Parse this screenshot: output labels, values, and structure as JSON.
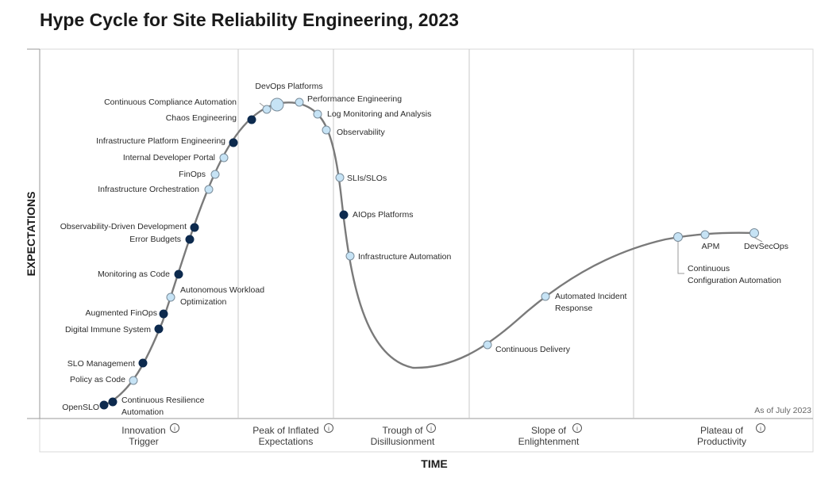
{
  "title": "Hype Cycle for Site Reliability Engineering, 2023",
  "axis": {
    "y_label": "EXPECTATIONS",
    "x_label": "TIME"
  },
  "as_of": "As of July 2023",
  "phases": [
    {
      "line1": "Innovation",
      "line2": "Trigger"
    },
    {
      "line1": "Peak of Inflated",
      "line2": "Expectations"
    },
    {
      "line1": "Trough of",
      "line2": "Disillusionment"
    },
    {
      "line1": "Slope of",
      "line2": "Enlightenment"
    },
    {
      "line1": "Plateau of",
      "line2": "Productivity"
    }
  ],
  "colors": {
    "dark_marker": "#0d2a4e",
    "light_marker": "#c6e3f5",
    "curve": "#7a7a7a",
    "grid": "#c8c8c8"
  },
  "technologies": [
    {
      "name": "OpenSLO",
      "marker": "dark"
    },
    {
      "name": "Continuous Resilience Automation",
      "marker": "dark"
    },
    {
      "name": "Policy as Code",
      "marker": "light"
    },
    {
      "name": "SLO Management",
      "marker": "dark"
    },
    {
      "name": "Digital Immune System",
      "marker": "dark"
    },
    {
      "name": "Augmented FinOps",
      "marker": "dark"
    },
    {
      "name": "Autonomous Workload Optimization",
      "marker": "light"
    },
    {
      "name": "Monitoring as Code",
      "marker": "dark"
    },
    {
      "name": "Error Budgets",
      "marker": "dark"
    },
    {
      "name": "Observability-Driven Development",
      "marker": "dark"
    },
    {
      "name": "Infrastructure Orchestration",
      "marker": "light"
    },
    {
      "name": "FinOps",
      "marker": "light"
    },
    {
      "name": "Internal Developer Portal",
      "marker": "light"
    },
    {
      "name": "Infrastructure Platform Engineering",
      "marker": "dark"
    },
    {
      "name": "Chaos Engineering",
      "marker": "dark"
    },
    {
      "name": "Continuous Compliance Automation",
      "marker": "light"
    },
    {
      "name": "DevOps Platforms",
      "marker": "light"
    },
    {
      "name": "Performance Engineering",
      "marker": "light"
    },
    {
      "name": "Log Monitoring and Analysis",
      "marker": "light"
    },
    {
      "name": "Observability",
      "marker": "light"
    },
    {
      "name": "SLIs/SLOs",
      "marker": "light"
    },
    {
      "name": "AIOps Platforms",
      "marker": "dark"
    },
    {
      "name": "Infrastructure Automation",
      "marker": "light"
    },
    {
      "name": "Continuous Delivery",
      "marker": "light"
    },
    {
      "name": "Automated Incident Response",
      "marker": "light"
    },
    {
      "name": "Continuous Configuration Automation",
      "marker": "light"
    },
    {
      "name": "APM",
      "marker": "light"
    },
    {
      "name": "DevSecOps",
      "marker": "light"
    }
  ]
}
